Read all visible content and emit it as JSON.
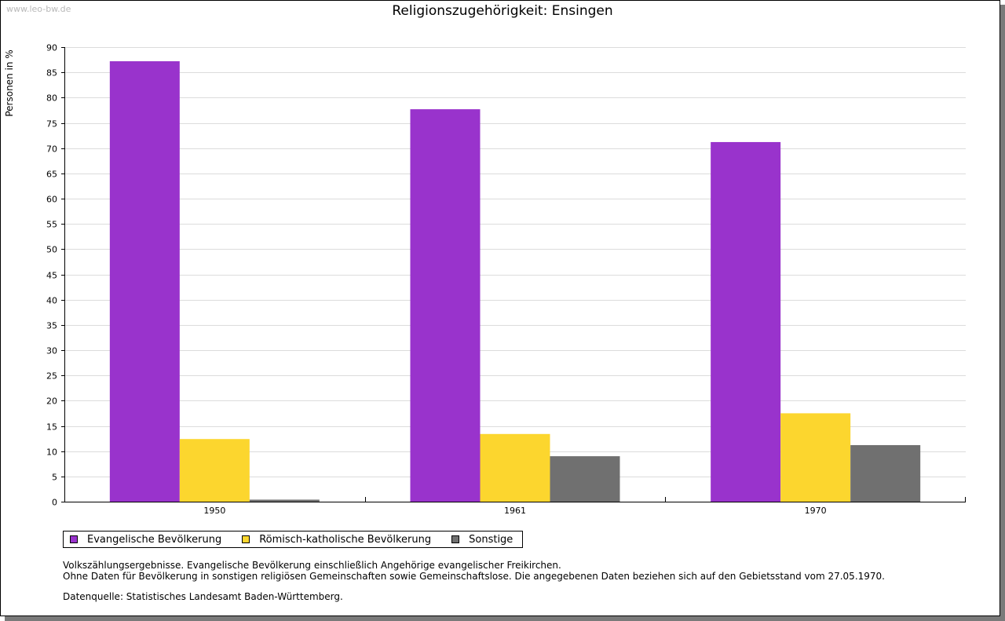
{
  "watermark": "www.leo-bw.de",
  "chart_data": {
    "type": "bar",
    "title": "Religionszugehörigkeit: Ensingen",
    "xlabel": "",
    "ylabel": "Personen in %",
    "ylim": [
      0,
      90
    ],
    "yticks": [
      0,
      5,
      10,
      15,
      20,
      25,
      30,
      35,
      40,
      45,
      50,
      55,
      60,
      65,
      70,
      75,
      80,
      85,
      90
    ],
    "grid": true,
    "legend_position": "bottom-left",
    "categories": [
      "1950",
      "1961",
      "1970"
    ],
    "series": [
      {
        "name": "Evangelische Bevölkerung",
        "color": "#9933CC",
        "values": [
          87.2,
          77.7,
          71.2
        ]
      },
      {
        "name": "Römisch-katholische Bevölkerung",
        "color": "#FCD62E",
        "values": [
          12.4,
          13.4,
          17.5
        ]
      },
      {
        "name": "Sonstige",
        "color": "#707070",
        "values": [
          0.4,
          9.0,
          11.2
        ]
      }
    ]
  },
  "notes": {
    "line1": "Volkszählungsergebnisse. Evangelische Bevölkerung einschließlich Angehörige evangelischer Freikirchen.",
    "line2": "Ohne Daten für Bevölkerung in sonstigen religiösen Gemeinschaften sowie Gemeinschaftslose. Die angegebenen Daten beziehen sich auf den Gebietsstand vom 27.05.1970.",
    "source": "Datenquelle: Statistisches Landesamt Baden-Württemberg."
  }
}
